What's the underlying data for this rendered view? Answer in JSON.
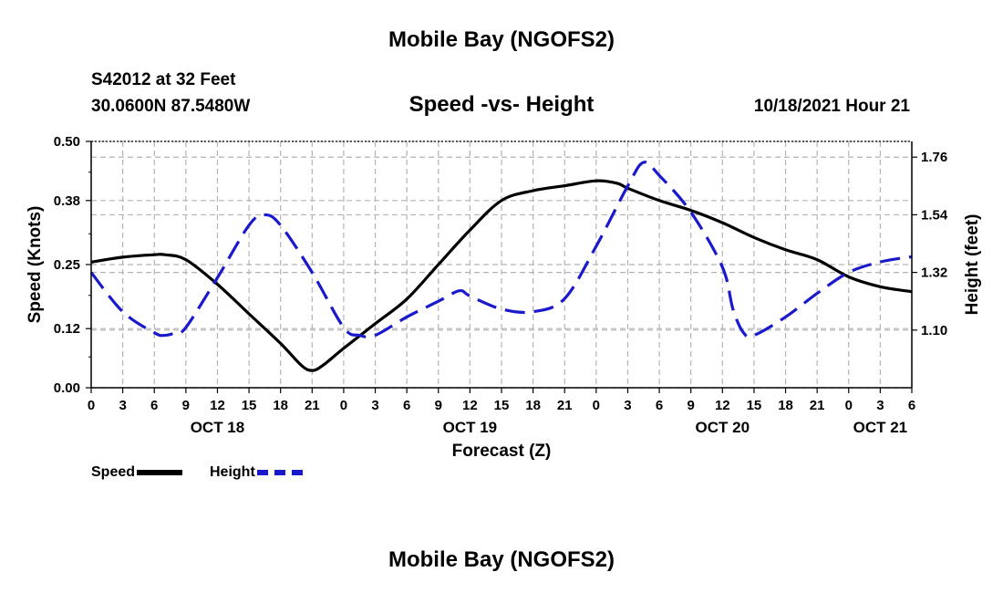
{
  "page": {
    "title": "Mobile Bay (NGOFS2)",
    "station": "S42012 at 32 Feet",
    "coords": "30.0600N  87.5480W",
    "subtitle": "Speed -vs- Height",
    "datetime": "10/18/2021 Hour 21",
    "bottom_title": "Mobile Bay (NGOFS2)"
  },
  "legend": {
    "speed_label": "Speed",
    "height_label": "Height"
  },
  "colors": {
    "speed": "#000000",
    "height": "#1a1acc",
    "grid": "#b4b4b4"
  },
  "chart_data": {
    "type": "line",
    "title": "Speed -vs- Height",
    "xlabel": "Forecast (Z)",
    "ylabel": "Speed (Knots)",
    "ylabel_right": "Height (feet)",
    "xlim": [
      0,
      78
    ],
    "ylim": [
      0,
      0.5
    ],
    "ylim_right": [
      0.88,
      1.82
    ],
    "x_ticks": [
      0,
      3,
      6,
      9,
      12,
      15,
      18,
      21,
      24,
      27,
      30,
      33,
      36,
      39,
      42,
      45,
      48,
      51,
      54,
      57,
      60,
      63,
      66,
      69,
      72,
      75,
      78
    ],
    "x_tick_labels": [
      "0",
      "3",
      "6",
      "9",
      "12",
      "15",
      "18",
      "21",
      "0",
      "3",
      "6",
      "9",
      "12",
      "15",
      "18",
      "21",
      "0",
      "3",
      "6",
      "9",
      "12",
      "15",
      "18",
      "21",
      "0",
      "3",
      "6"
    ],
    "date_labels": [
      {
        "x": 12,
        "label": "OCT 18"
      },
      {
        "x": 36,
        "label": "OCT 19"
      },
      {
        "x": 60,
        "label": "OCT 20"
      },
      {
        "x": 75,
        "label": "OCT 21"
      }
    ],
    "y_ticks_left": [
      0.0,
      0.12,
      0.25,
      0.38,
      0.5
    ],
    "y_tick_labels_left": [
      "0.00",
      "0.12",
      "0.25",
      "0.38",
      "0.50"
    ],
    "y_ticks_right": [
      1.1,
      1.32,
      1.54,
      1.76
    ],
    "y_tick_labels_right": [
      "1.10",
      "1.32",
      "1.54",
      "1.76"
    ],
    "grid": true,
    "series": [
      {
        "name": "Speed",
        "axis": "left",
        "style": "solid",
        "x": [
          0,
          3,
          6,
          7,
          9,
          12,
          15,
          18,
          20,
          21,
          22,
          24,
          27,
          30,
          33,
          36,
          39,
          42,
          45,
          48,
          50,
          51,
          54,
          57,
          60,
          63,
          66,
          69,
          72,
          75,
          78
        ],
        "y": [
          0.255,
          0.265,
          0.27,
          0.27,
          0.26,
          0.21,
          0.15,
          0.09,
          0.045,
          0.035,
          0.045,
          0.08,
          0.13,
          0.18,
          0.25,
          0.32,
          0.38,
          0.4,
          0.41,
          0.42,
          0.415,
          0.405,
          0.38,
          0.36,
          0.335,
          0.305,
          0.28,
          0.26,
          0.225,
          0.205,
          0.195
        ]
      },
      {
        "name": "Height",
        "axis": "right",
        "style": "dashed",
        "x": [
          0,
          3,
          6,
          7,
          8,
          9,
          12,
          15,
          16.5,
          18,
          21,
          24,
          25.5,
          27,
          30,
          33,
          35,
          36,
          39,
          42,
          45,
          48,
          51,
          52.5,
          54,
          57,
          60,
          61,
          62,
          63,
          66,
          69,
          72,
          75,
          78
        ],
        "y": [
          1.32,
          1.17,
          1.09,
          1.08,
          1.09,
          1.11,
          1.3,
          1.5,
          1.54,
          1.5,
          1.32,
          1.11,
          1.08,
          1.08,
          1.15,
          1.21,
          1.25,
          1.23,
          1.18,
          1.17,
          1.22,
          1.42,
          1.65,
          1.74,
          1.69,
          1.55,
          1.34,
          1.18,
          1.09,
          1.08,
          1.15,
          1.24,
          1.32,
          1.36,
          1.38
        ]
      }
    ]
  }
}
